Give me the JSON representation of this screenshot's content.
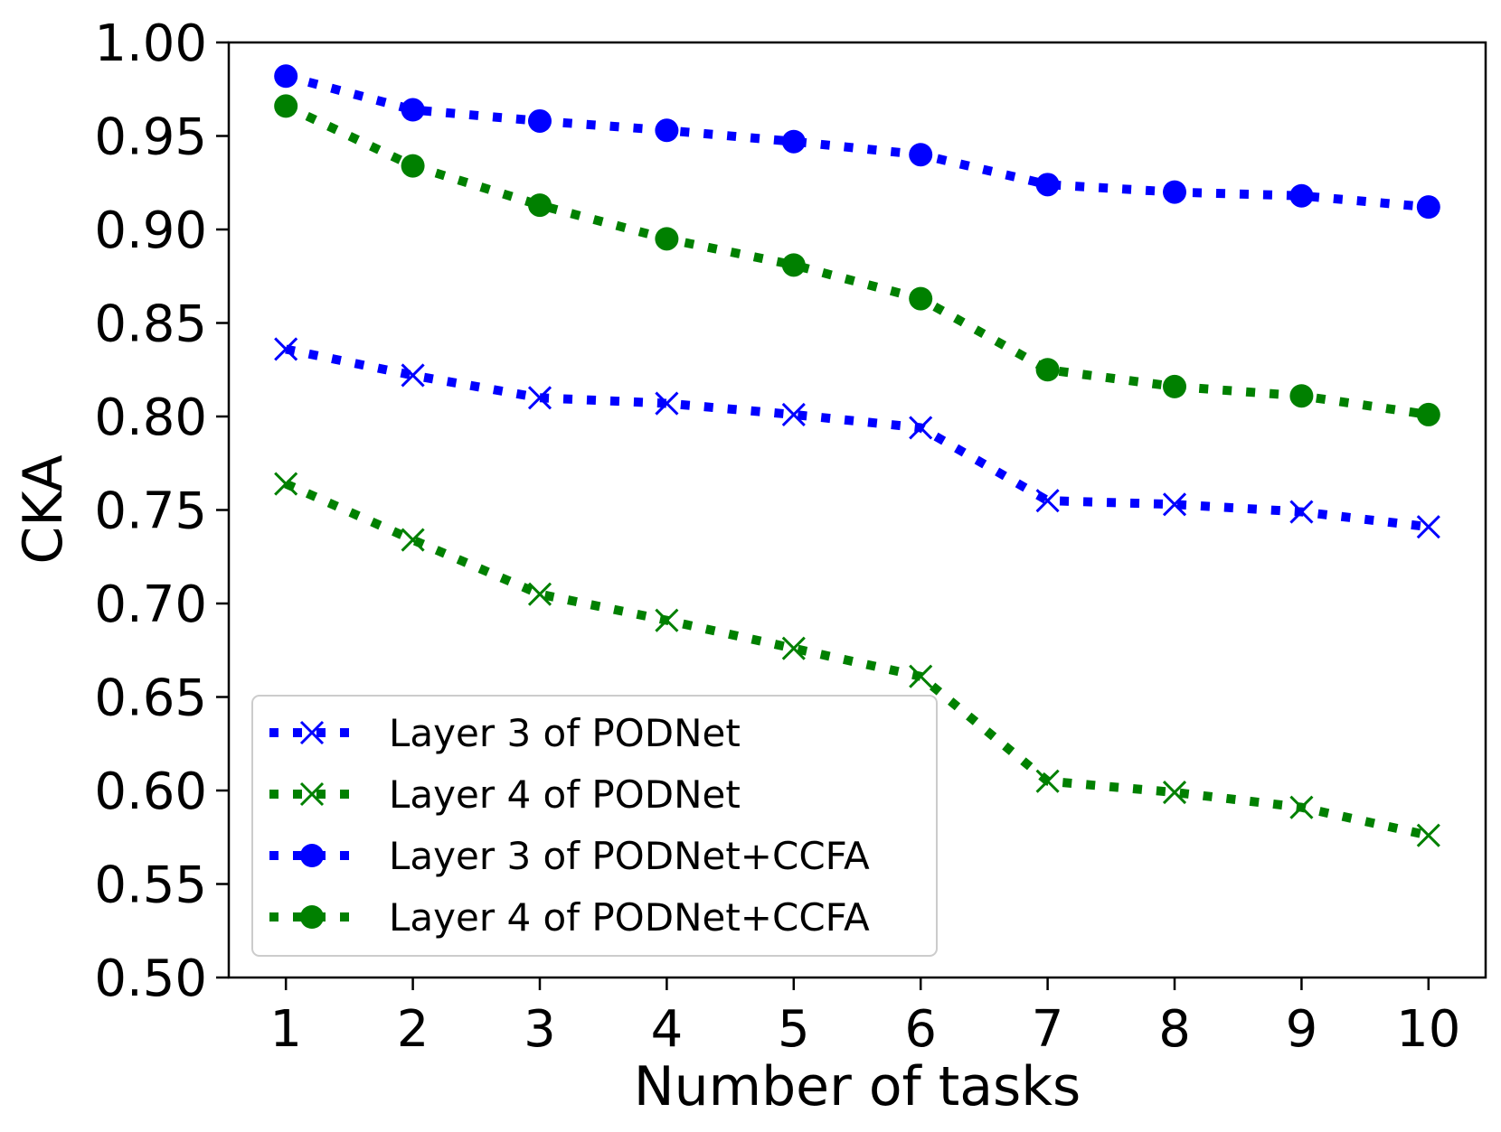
{
  "chart_data": {
    "type": "line",
    "title": "",
    "xlabel": "Number of tasks",
    "ylabel": "CKA",
    "x": [
      1,
      2,
      3,
      4,
      5,
      6,
      7,
      8,
      9,
      10
    ],
    "xlim": [
      0.55,
      10.45
    ],
    "ylim": [
      0.5,
      1.0
    ],
    "xticks": [
      "1",
      "2",
      "3",
      "4",
      "5",
      "6",
      "7",
      "8",
      "9",
      "10"
    ],
    "yticks": [
      "0.50",
      "0.55",
      "0.60",
      "0.65",
      "0.70",
      "0.75",
      "0.80",
      "0.85",
      "0.90",
      "0.95",
      "1.00"
    ],
    "grid": false,
    "legend_position": "lower-left",
    "series": [
      {
        "name": "Layer 3 of PODNet",
        "color": "#0000ff",
        "marker": "x",
        "linestyle": "dotted",
        "values": [
          0.836,
          0.822,
          0.81,
          0.807,
          0.801,
          0.794,
          0.755,
          0.753,
          0.749,
          0.741
        ]
      },
      {
        "name": "Layer 4 of PODNet",
        "color": "#008000",
        "marker": "x",
        "linestyle": "dotted",
        "values": [
          0.764,
          0.734,
          0.705,
          0.691,
          0.676,
          0.661,
          0.605,
          0.599,
          0.591,
          0.576
        ]
      },
      {
        "name": "Layer 3 of PODNet+CCFA",
        "color": "#0000ff",
        "marker": "circle",
        "linestyle": "dotted",
        "values": [
          0.982,
          0.964,
          0.958,
          0.953,
          0.947,
          0.94,
          0.924,
          0.92,
          0.918,
          0.912
        ]
      },
      {
        "name": "Layer 4 of PODNet+CCFA",
        "color": "#008000",
        "marker": "circle",
        "linestyle": "dotted",
        "values": [
          0.966,
          0.934,
          0.913,
          0.895,
          0.881,
          0.863,
          0.825,
          0.816,
          0.811,
          0.801
        ]
      }
    ]
  }
}
